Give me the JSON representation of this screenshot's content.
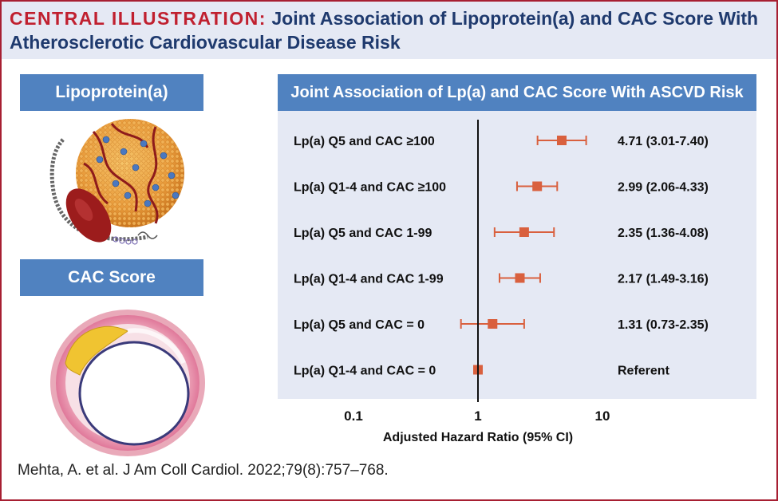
{
  "header": {
    "lead": "CENTRAL ILLUSTRATION:",
    "title": "Joint Association of Lipoprotein(a) and CAC Score With Atherosclerotic Cardiovascular Disease Risk"
  },
  "left_panel": {
    "lp_label": "Lipoprotein(a)",
    "cac_label": "CAC Score"
  },
  "chart_data": {
    "type": "forest",
    "title": "Joint Association of Lp(a) and CAC Score With ASCVD Risk",
    "xlabel": "Adjusted Hazard Ratio (95% CI)",
    "xscale": "log",
    "xlim": [
      0.1,
      10
    ],
    "xticks": [
      "0.1",
      "1",
      "10"
    ],
    "reference_line": 1,
    "rows": [
      {
        "label": "Lp(a) Q5 and CAC ≥100",
        "hr": 4.71,
        "lo": 3.01,
        "hi": 7.4,
        "text": "4.71 (3.01-7.40)"
      },
      {
        "label": "Lp(a) Q1-4 and CAC ≥100",
        "hr": 2.99,
        "lo": 2.06,
        "hi": 4.33,
        "text": "2.99 (2.06-4.33)"
      },
      {
        "label": "Lp(a) Q5 and CAC 1-99",
        "hr": 2.35,
        "lo": 1.36,
        "hi": 4.08,
        "text": "2.35 (1.36-4.08)"
      },
      {
        "label": "Lp(a) Q1-4 and CAC 1-99",
        "hr": 2.17,
        "lo": 1.49,
        "hi": 3.16,
        "text": "2.17 (1.49-3.16)"
      },
      {
        "label": "Lp(a) Q5 and CAC = 0",
        "hr": 1.31,
        "lo": 0.73,
        "hi": 2.35,
        "text": "1.31 (0.73-2.35)"
      },
      {
        "label": "Lp(a) Q1-4 and CAC = 0",
        "hr": 1,
        "lo": 1,
        "hi": 1,
        "text": "Referent"
      }
    ],
    "marker_color": "#d9603e",
    "axis_color": "#111111"
  },
  "citation": "Mehta, A. et al. J Am Coll Cardiol. 2022;79(8):757–768."
}
